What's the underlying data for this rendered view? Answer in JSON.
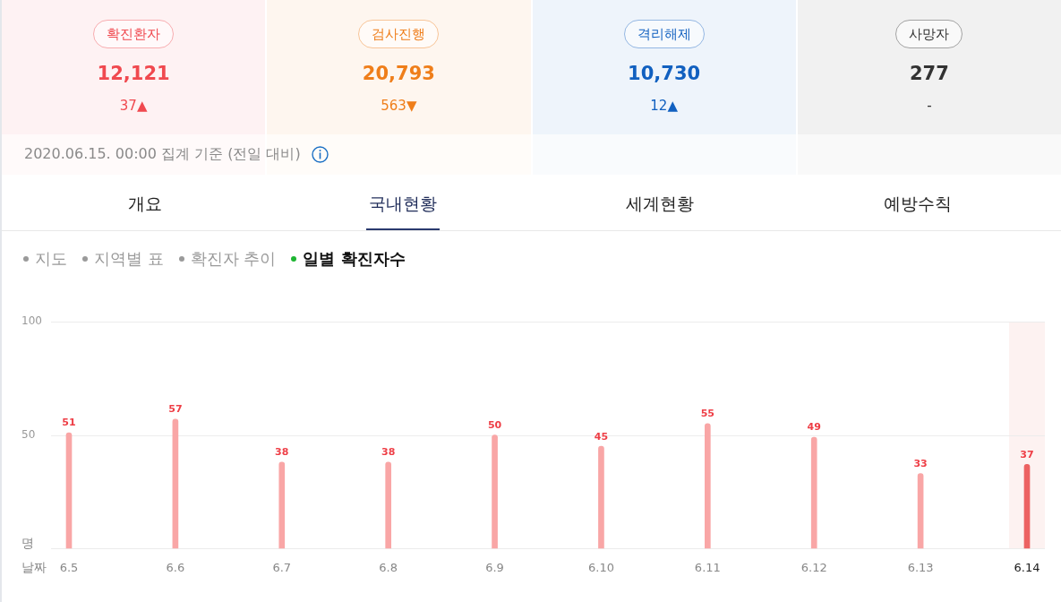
{
  "chart_data": [
    {
      "type": "other",
      "categories": [
        "확진환자",
        "검사진행",
        "격리해제",
        "사망자"
      ],
      "annotations": [
        {
          "text": "12,121",
          "x": "확진환자"
        },
        {
          "text": "37▲",
          "x": "확진환자"
        },
        {
          "text": "20,793",
          "x": "검사진행"
        },
        {
          "text": "563▼",
          "x": "검사진행"
        },
        {
          "text": "10,730",
          "x": "격리해제"
        },
        {
          "text": "12▲",
          "x": "격리해제"
        },
        {
          "text": "277",
          "x": "사망자"
        },
        {
          "text": "-",
          "x": "사망자"
        },
        "2020.06.15. 00:00 집계 기준 (전일 대비)"
      ]
    },
    {
      "type": "other",
      "categories": [
        "개요",
        "국내현황",
        "세계현황",
        "예방수칙"
      ],
      "annotations": [
        "지도",
        "지역별 표",
        "확진자 추이",
        "일별 확진자수"
      ]
    },
    {
      "type": "bar",
      "categories": [
        "6.5",
        "6.6",
        "6.7",
        "6.8",
        "6.9",
        "6.10",
        "6.11",
        "6.12",
        "6.13",
        "6.14"
      ],
      "values": [
        51,
        57,
        38,
        38,
        50,
        45,
        55,
        49,
        33,
        37
      ],
      "colors": [
        "#f9a6a6",
        "#f9a6a6",
        "#f9a6a6",
        "#f9a6a6",
        "#f9a6a6",
        "#f9a6a6",
        "#f9a6a6",
        "#f9a6a6",
        "#f9a6a6",
        "#ec6262"
      ],
      "xlabel": "날짜",
      "ylabel": "명",
      "ylim": [
        0,
        100
      ],
      "yticks": [
        {
          "value": 0,
          "label": null
        },
        50,
        100
      ],
      "grid": "y",
      "data_labels": true,
      "bands": [
        {
          "axis": "x",
          "from": "6.14",
          "to": "6.14",
          "color": "#fdf2f1"
        }
      ]
    }
  ]
}
